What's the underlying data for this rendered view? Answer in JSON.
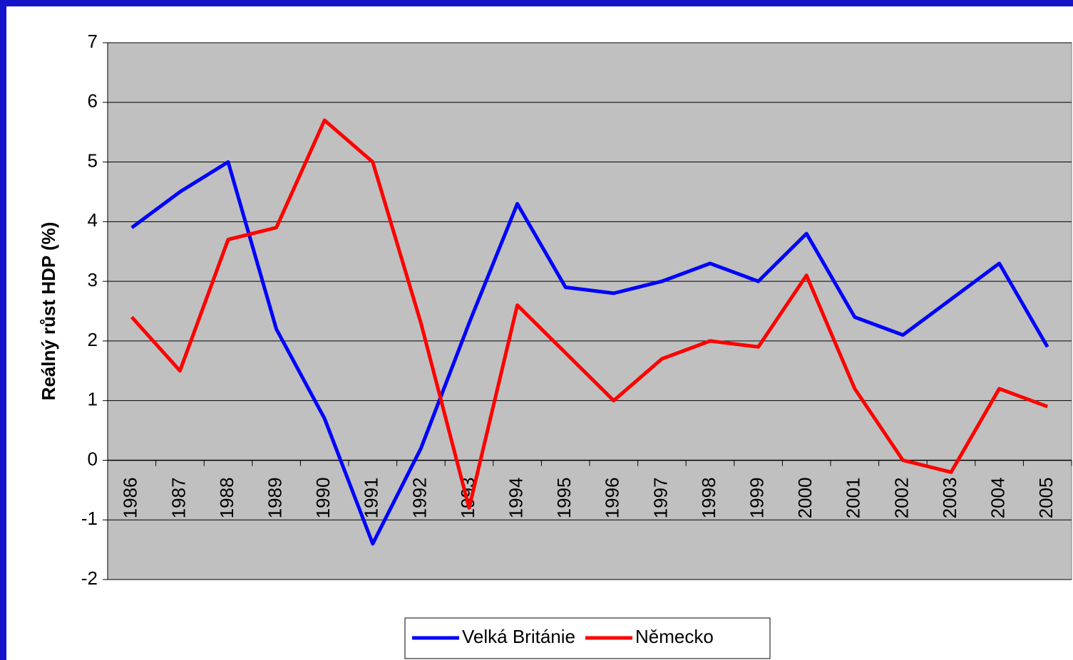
{
  "chart_data": {
    "type": "line",
    "y_label": "Reálný růst HDP (%)",
    "categories": [
      "1986",
      "1987",
      "1988",
      "1989",
      "1990",
      "1991",
      "1992",
      "1993",
      "1994",
      "1995",
      "1996",
      "1997",
      "1998",
      "1999",
      "2000",
      "2001",
      "2002",
      "2003",
      "2004",
      "2005"
    ],
    "series": [
      {
        "name": "Velká Británie",
        "color": "#0000ff",
        "values": [
          3.9,
          4.5,
          5.0,
          2.2,
          0.7,
          -1.4,
          0.2,
          2.3,
          4.3,
          2.9,
          2.8,
          3.0,
          3.3,
          3.0,
          3.8,
          2.4,
          2.1,
          2.7,
          3.3,
          1.9
        ]
      },
      {
        "name": "Německo",
        "color": "#ff0000",
        "values": [
          2.4,
          1.5,
          3.7,
          3.9,
          5.7,
          5.0,
          2.3,
          -0.8,
          2.6,
          1.8,
          1.0,
          1.7,
          2.0,
          1.9,
          3.1,
          1.2,
          0.0,
          -0.2,
          1.2,
          0.9
        ]
      }
    ],
    "ylim": [
      -2,
      7
    ],
    "yticks": [
      -2,
      -1,
      0,
      1,
      2,
      3,
      4,
      5,
      6,
      7
    ],
    "grid": true,
    "plot_background": "#c0c0c0",
    "legend": "bottom"
  }
}
